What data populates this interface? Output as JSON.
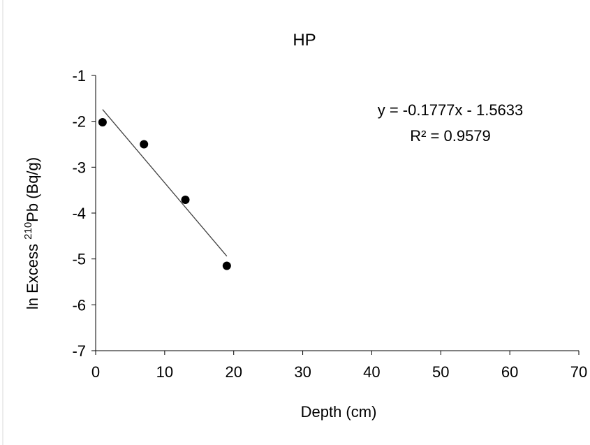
{
  "chart_data": {
    "type": "scatter",
    "title": "HP",
    "xlabel": "Depth (cm)",
    "ylabel": {
      "prefix": "ln Excess ",
      "superscript": "210",
      "suffix": "Pb (Bq/g)"
    },
    "xlim": [
      0,
      70
    ],
    "ylim": [
      -7,
      -1
    ],
    "xticks": [
      0,
      10,
      20,
      30,
      40,
      50,
      60,
      70
    ],
    "yticks": [
      -1,
      -2,
      -3,
      -4,
      -5,
      -6,
      -7
    ],
    "grid": false,
    "series": [
      {
        "x": [
          1,
          7,
          13,
          19
        ],
        "y": [
          -2.02,
          -2.5,
          -3.71,
          -5.15
        ],
        "color": "#000000"
      }
    ],
    "trendline": {
      "slope": -0.1777,
      "intercept": -1.5633,
      "x_range": [
        1,
        19
      ],
      "color": "#404040"
    },
    "annotations": {
      "equation": "y = -0.1777x - 1.5633",
      "r_squared": "R² = 0.9579"
    }
  }
}
